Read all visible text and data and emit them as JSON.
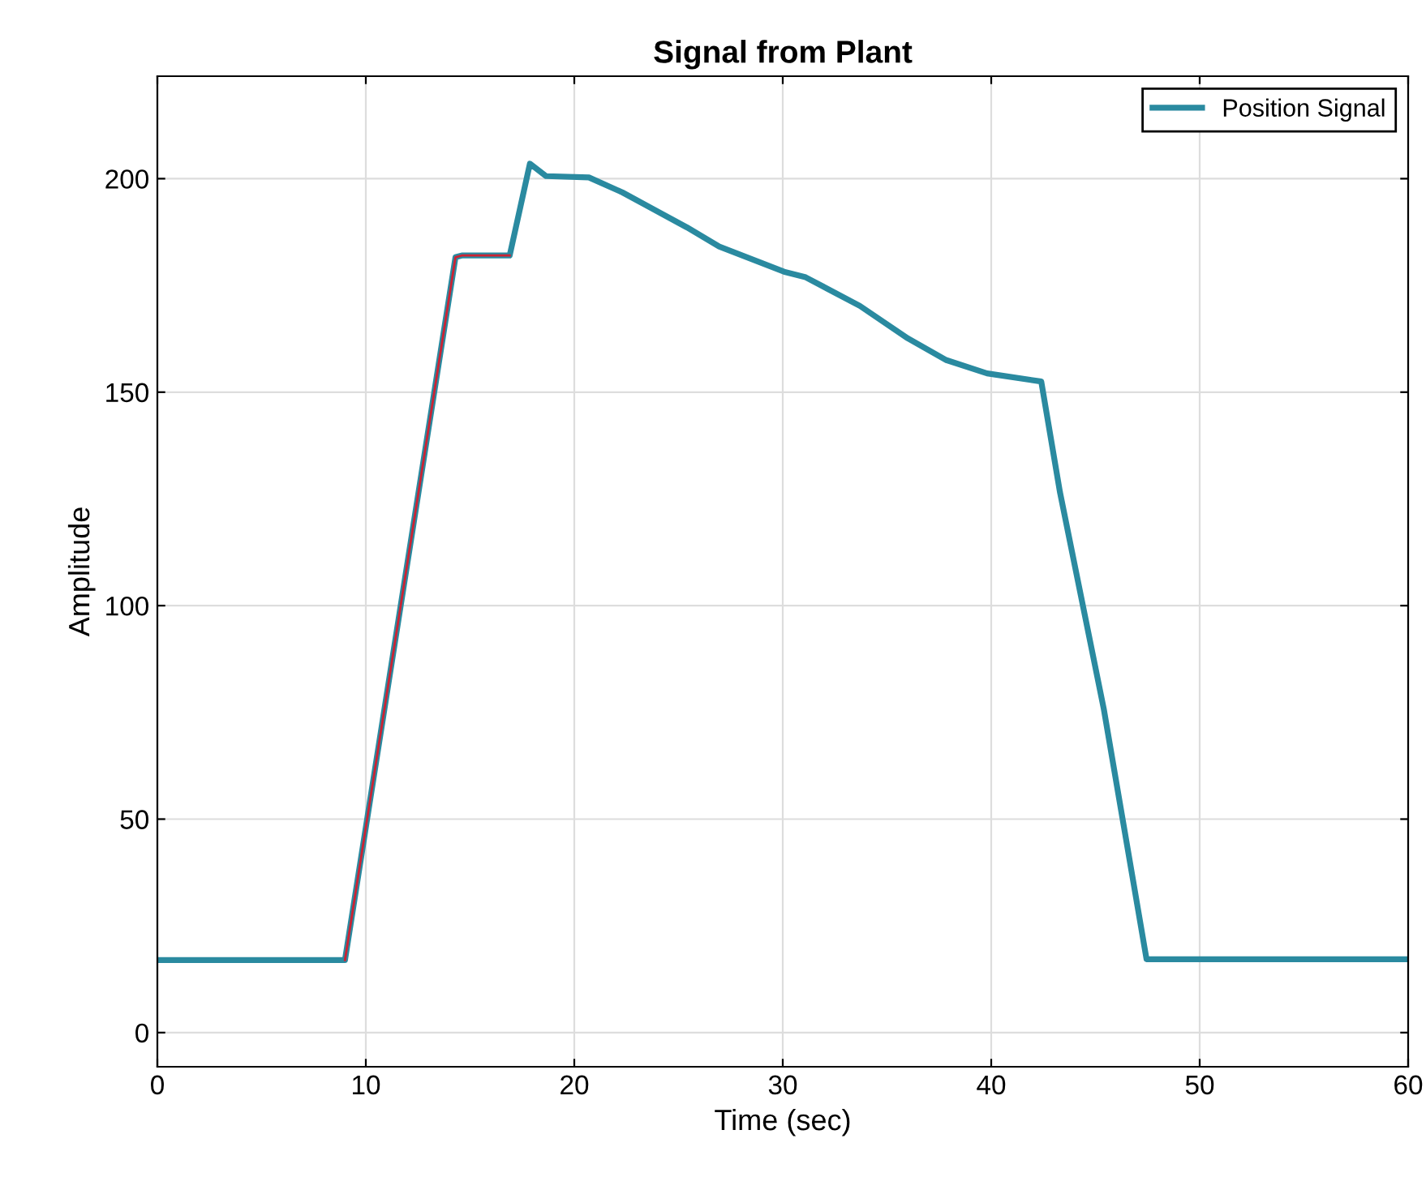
{
  "chart_data": {
    "type": "line",
    "title": "Signal from Plant",
    "xlabel": "Time (sec)",
    "ylabel": "Amplitude",
    "xlim": [
      0,
      60
    ],
    "ylim": [
      -8,
      224
    ],
    "xticks": [
      0,
      10,
      20,
      30,
      40,
      50,
      60
    ],
    "yticks": [
      0,
      50,
      100,
      150,
      200
    ],
    "grid": true,
    "legend": "top right",
    "series": [
      {
        "name": "Position Signal",
        "color": "#2a8aa0",
        "x": [
          0,
          9.0,
          14.3,
          14.6,
          16.9,
          17.87,
          18.65,
          20.7,
          22.3,
          25.4,
          26.95,
          30.06,
          31.1,
          33.7,
          36.0,
          37.85,
          39.8,
          42.4,
          43.3,
          45.4,
          47.45,
          60
        ],
        "values": [
          17,
          17,
          181.6,
          182,
          182,
          203.5,
          200.6,
          200.3,
          196.8,
          188.6,
          184.1,
          178.2,
          176.9,
          170.2,
          162.6,
          157.5,
          154.4,
          152.5,
          126.5,
          75.8,
          17.2,
          17.2
        ]
      },
      {
        "color": "#cc2233",
        "x": [
          9.0,
          14.3,
          14.6,
          16.9
        ],
        "values": [
          17,
          181.6,
          182,
          182
        ]
      }
    ]
  }
}
